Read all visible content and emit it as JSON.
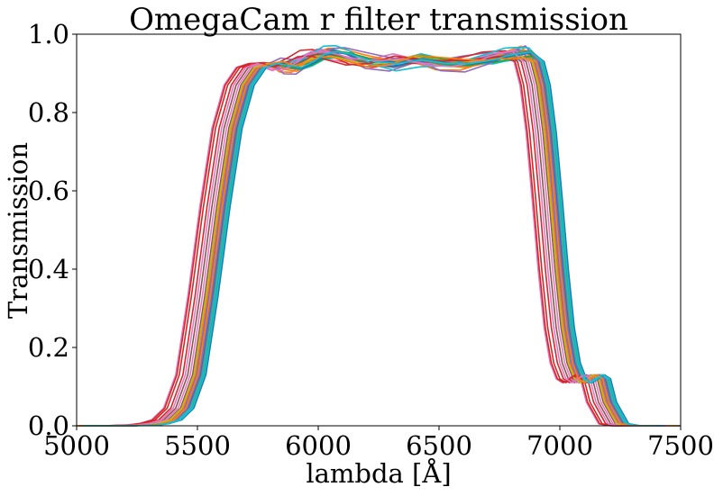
{
  "chart_data": {
    "type": "line",
    "title": "OmegaCam r filter transmission",
    "xlabel": "lambda [Å]",
    "ylabel": "Transmission",
    "xlim": [
      5000,
      7500
    ],
    "ylim": [
      0.0,
      1.0
    ],
    "xticks": [
      "5000",
      "5500",
      "6000",
      "6500",
      "7000",
      "7500"
    ],
    "yticks": [
      "0.0",
      "0.2",
      "0.4",
      "0.6",
      "0.8",
      "1.0"
    ],
    "grid": false,
    "legend": "none",
    "template_x": [
      5000,
      5200,
      5300,
      5350,
      5400,
      5450,
      5500,
      5550,
      5600,
      5650,
      5700,
      5750,
      5800,
      5850,
      5900,
      5950,
      6000,
      6050,
      6100,
      6200,
      6300,
      6400,
      6500,
      6600,
      6700,
      6750,
      6800,
      6850,
      6900,
      6925,
      6950,
      6975,
      7000,
      7025,
      7050,
      7075,
      7100,
      7125,
      7150,
      7175,
      7200,
      7250,
      7300,
      7400,
      7500
    ],
    "template_y": [
      0.0,
      0.0,
      0.002,
      0.006,
      0.015,
      0.045,
      0.13,
      0.33,
      0.56,
      0.76,
      0.87,
      0.915,
      0.925,
      0.92,
      0.915,
      0.93,
      0.95,
      0.955,
      0.95,
      0.93,
      0.925,
      0.935,
      0.925,
      0.925,
      0.935,
      0.945,
      0.95,
      0.955,
      0.93,
      0.87,
      0.75,
      0.58,
      0.4,
      0.25,
      0.16,
      0.12,
      0.11,
      0.12,
      0.13,
      0.12,
      0.06,
      0.005,
      0.0,
      0.0,
      0.0
    ],
    "series": [
      {
        "color": "#1f77b4",
        "x_shift": 0,
        "wiggle": 0.008
      },
      {
        "color": "#ff7f0e",
        "x_shift": 10,
        "wiggle": -0.01
      },
      {
        "color": "#2ca02c",
        "x_shift": 20,
        "wiggle": 0.012
      },
      {
        "color": "#d62728",
        "x_shift": -60,
        "wiggle": 0.005
      },
      {
        "color": "#9467bd",
        "x_shift": -5,
        "wiggle": -0.02
      },
      {
        "color": "#8c564b",
        "x_shift": -40,
        "wiggle": 0.0
      },
      {
        "color": "#e377c2",
        "x_shift": -90,
        "wiggle": -0.015
      },
      {
        "color": "#7f7f7f",
        "x_shift": 15,
        "wiggle": 0.01
      },
      {
        "color": "#bcbd22",
        "x_shift": 5,
        "wiggle": -0.005
      },
      {
        "color": "#17becf",
        "x_shift": 25,
        "wiggle": 0.015
      },
      {
        "color": "#1f77b4",
        "x_shift": 12,
        "wiggle": -0.008
      },
      {
        "color": "#ff7f0e",
        "x_shift": -10,
        "wiggle": 0.018
      },
      {
        "color": "#2ca02c",
        "x_shift": 28,
        "wiggle": -0.012
      },
      {
        "color": "#d62728",
        "x_shift": -75,
        "wiggle": 0.01
      },
      {
        "color": "#9467bd",
        "x_shift": 8,
        "wiggle": -0.022
      },
      {
        "color": "#8c564b",
        "x_shift": -20,
        "wiggle": 0.004
      },
      {
        "color": "#e377c2",
        "x_shift": -30,
        "wiggle": -0.006
      },
      {
        "color": "#7f7f7f",
        "x_shift": 18,
        "wiggle": 0.006
      },
      {
        "color": "#bcbd22",
        "x_shift": -15,
        "wiggle": -0.01
      },
      {
        "color": "#17becf",
        "x_shift": 22,
        "wiggle": 0.02
      },
      {
        "color": "#2ca02c",
        "x_shift": 32,
        "wiggle": -0.004
      },
      {
        "color": "#d62728",
        "x_shift": -85,
        "wiggle": 0.012
      },
      {
        "color": "#1f77b4",
        "x_shift": 35,
        "wiggle": 0.003
      },
      {
        "color": "#e377c2",
        "x_shift": -50,
        "wiggle": 0.008
      },
      {
        "color": "#ff7f0e",
        "x_shift": 2,
        "wiggle": -0.016
      },
      {
        "color": "#17becf",
        "x_shift": 30,
        "wiggle": 0.0
      }
    ]
  }
}
